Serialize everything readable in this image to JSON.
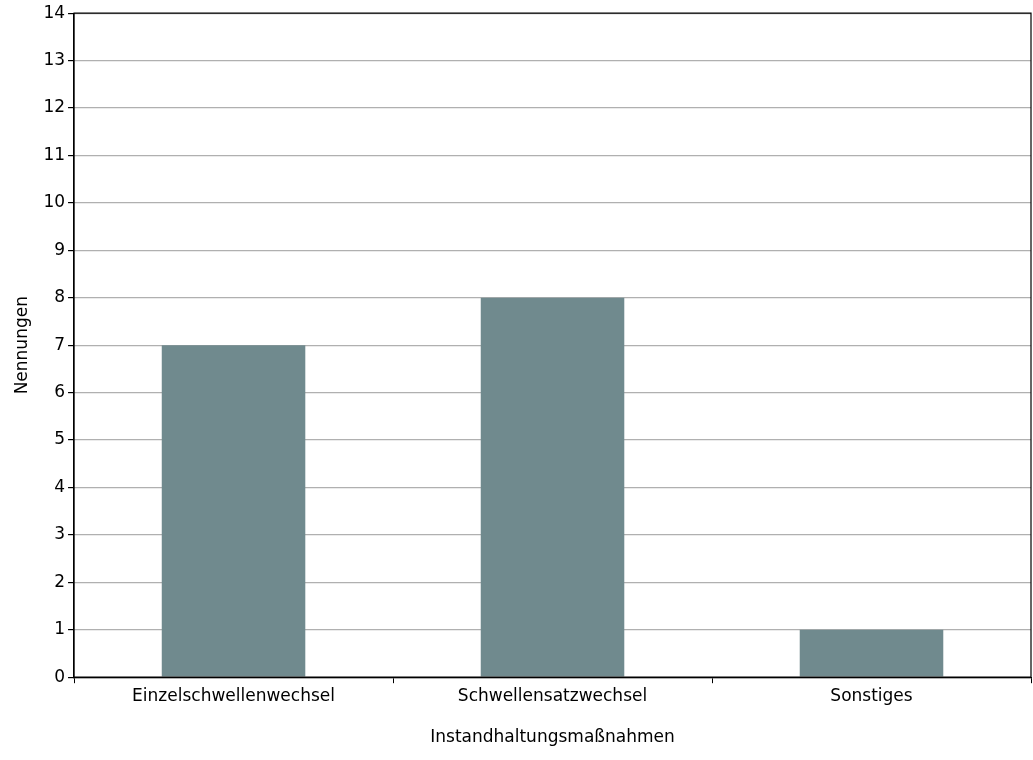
{
  "chart_data": {
    "type": "bar",
    "xlabel": "Instandhaltungsmaßnahmen",
    "ylabel": "Nennungen",
    "categories": [
      "Einzelschwellenwechsel",
      "Schwellensatzwechsel",
      "Sonstiges"
    ],
    "values": [
      7,
      8,
      1
    ],
    "color": "#708a8e",
    "ylim": [
      0,
      14
    ],
    "yticks": [
      0,
      1,
      2,
      3,
      4,
      5,
      6,
      7,
      8,
      9,
      10,
      11,
      12,
      13,
      14
    ],
    "grid": "y",
    "legend": false
  }
}
